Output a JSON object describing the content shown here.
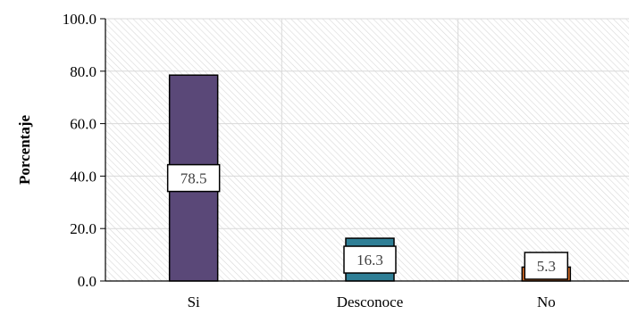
{
  "chart_data": {
    "type": "bar",
    "title": "",
    "xlabel": "",
    "ylabel": "Porcentaje",
    "ylim": [
      0,
      100
    ],
    "yticks": [
      "0.0",
      "20.0",
      "40.0",
      "60.0",
      "80.0",
      "100.0"
    ],
    "categories": [
      "Si",
      "Desconoce",
      "No"
    ],
    "values": [
      78.5,
      16.3,
      5.3
    ],
    "data_labels": [
      "78.5",
      "16.3",
      "5.3"
    ],
    "colors": [
      "#5a4878",
      "#2f7f96",
      "#e8762b"
    ],
    "grid": true,
    "legend": "none"
  }
}
